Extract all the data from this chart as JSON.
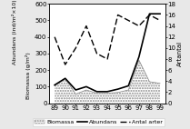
{
  "years": [
    89,
    90,
    91,
    92,
    93,
    94,
    95,
    96,
    97,
    98,
    99
  ],
  "biomassa": [
    105,
    150,
    55,
    80,
    60,
    60,
    65,
    80,
    260,
    130,
    120
  ],
  "abundans": [
    110,
    150,
    80,
    100,
    70,
    70,
    85,
    105,
    280,
    540,
    540
  ],
  "antal_arter": [
    12,
    7,
    10,
    14,
    9,
    8,
    16,
    15,
    14,
    16,
    15
  ],
  "ylim_left": [
    0,
    600
  ],
  "ylim_right": [
    0,
    18
  ],
  "yticks_left": [
    0,
    100,
    200,
    300,
    400,
    500,
    600
  ],
  "yticks_right": [
    0,
    2,
    4,
    6,
    8,
    10,
    12,
    14,
    16,
    18
  ],
  "ylabel_left1": "Abundans (ind/m²×10)",
  "ylabel_left2": "Biomassa (g/m²)",
  "ylabel_right": "Artantal",
  "bg_color": "#e8e8e8",
  "plot_bg": "#ffffff",
  "legend_labels": [
    "Biomassa",
    "Abundans",
    "Antal arter"
  ],
  "fontsize": 5.0
}
